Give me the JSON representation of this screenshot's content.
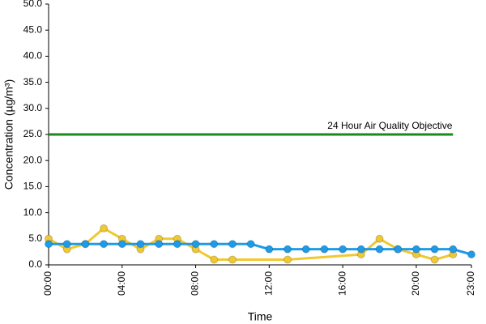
{
  "chart_data": {
    "type": "line",
    "y_label": "Concentration (µg/m³)",
    "x_label": "Time",
    "xlim": [
      0,
      23
    ],
    "xticks": [
      {
        "value": 0,
        "label": "00:00"
      },
      {
        "value": 4,
        "label": "04:00"
      },
      {
        "value": 8,
        "label": "08:00"
      },
      {
        "value": 12,
        "label": "12:00"
      },
      {
        "value": 16,
        "label": "16:00"
      },
      {
        "value": 20,
        "label": "20:00"
      },
      {
        "value": 23,
        "label": "23:00"
      }
    ],
    "ylim": [
      0,
      50
    ],
    "yticks": [
      {
        "value": 0,
        "label": "0.0"
      },
      {
        "value": 5,
        "label": "5.0"
      },
      {
        "value": 10,
        "label": "10.0"
      },
      {
        "value": 15,
        "label": "15.0"
      },
      {
        "value": 20,
        "label": "20.0"
      },
      {
        "value": 25,
        "label": "25.0"
      },
      {
        "value": 30,
        "label": "30.0"
      },
      {
        "value": 35,
        "label": "35.0"
      },
      {
        "value": 40,
        "label": "40.0"
      },
      {
        "value": 45,
        "label": "45.0"
      },
      {
        "value": 50,
        "label": "50.0"
      }
    ],
    "grid": false,
    "series": [
      {
        "color": "#1a8a1a",
        "markers": false,
        "x": [
          0,
          22
        ],
        "values": [
          25,
          25
        ]
      },
      {
        "color": "#f0c832",
        "markers": true,
        "x": [
          0,
          1,
          2,
          3,
          4,
          5,
          6,
          7,
          8,
          9,
          10,
          13,
          17,
          18,
          19,
          20,
          21,
          22
        ],
        "values": [
          5,
          3,
          4,
          7,
          5,
          3,
          5,
          5,
          3,
          1,
          1,
          1,
          2,
          5,
          3,
          2,
          1,
          2
        ]
      },
      {
        "color": "#1e9be8",
        "markers": true,
        "x": [
          0,
          1,
          2,
          3,
          4,
          5,
          6,
          7,
          8,
          9,
          10,
          11,
          12,
          13,
          14,
          15,
          16,
          17,
          18,
          19,
          20,
          21,
          22,
          23
        ],
        "values": [
          4,
          4,
          4,
          4,
          4,
          4,
          4,
          4,
          4,
          4,
          4,
          4,
          3,
          3,
          3,
          3,
          3,
          3,
          3,
          3,
          3,
          3,
          3,
          2
        ]
      }
    ],
    "annotation": "24 Hour Air Quality Objective"
  }
}
